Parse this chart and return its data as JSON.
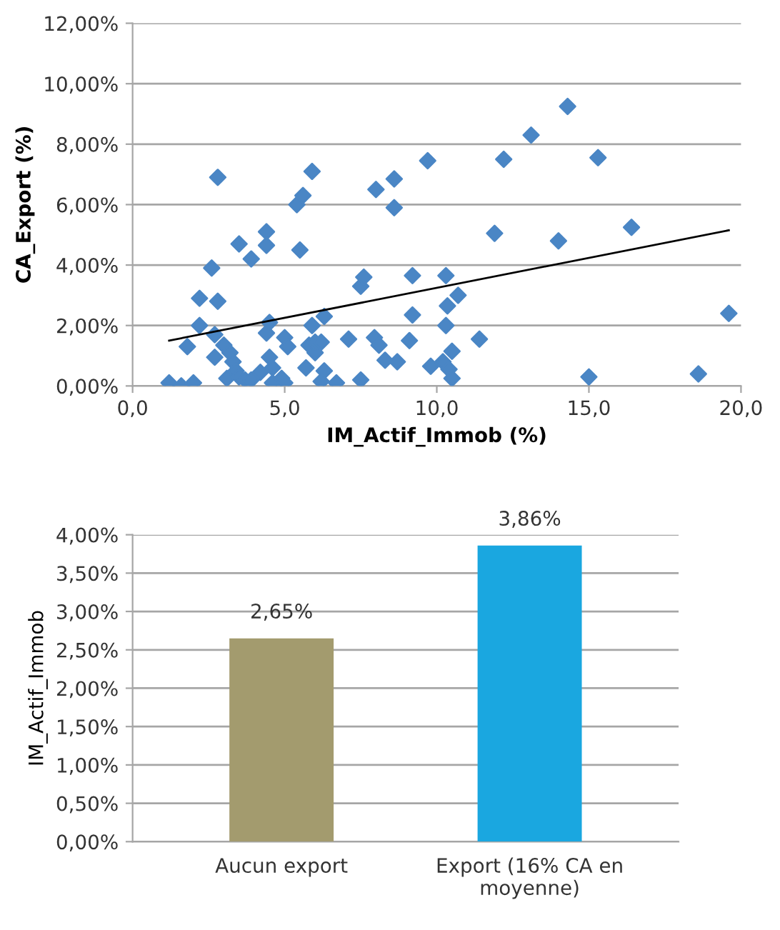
{
  "chart_data": [
    {
      "type": "scatter",
      "xlabel": "IM_Actif_Immob (%)",
      "ylabel": "CA_Export (%)",
      "xlim": [
        0,
        20
      ],
      "xticks": [
        {
          "value": 0,
          "label": "0,0"
        },
        {
          "value": 5,
          "label": "5,0"
        },
        {
          "value": 10,
          "label": "10,0"
        },
        {
          "value": 15,
          "label": "15,0"
        },
        {
          "value": 20,
          "label": "20,0"
        }
      ],
      "ylim": [
        0,
        12
      ],
      "yticks": [
        {
          "value": 0,
          "label": "0,00%"
        },
        {
          "value": 2,
          "label": "2,00%"
        },
        {
          "value": 4,
          "label": "4,00%"
        },
        {
          "value": 6,
          "label": "6,00%"
        },
        {
          "value": 8,
          "label": "8,00%"
        },
        {
          "value": 10,
          "label": "10,00%"
        },
        {
          "value": 12,
          "label": "12,00%"
        }
      ],
      "grid": "y",
      "series": [
        {
          "type": "scatter",
          "color": "#4a86c5",
          "marker": "diamond",
          "x": [
            1.2,
            1.6,
            2.0,
            1.8,
            2.2,
            2.2,
            2.6,
            2.8,
            2.8,
            2.7,
            2.7,
            3.0,
            3.1,
            3.2,
            3.3,
            3.4,
            3.5,
            3.5,
            3.7,
            3.9,
            3.9,
            4.2,
            4.4,
            4.4,
            4.5,
            4.4,
            4.5,
            4.6,
            4.6,
            4.9,
            5.0,
            5.1,
            5.0,
            5.4,
            5.6,
            5.5,
            5.7,
            5.8,
            5.9,
            5.9,
            6.0,
            6.0,
            6.2,
            6.3,
            6.3,
            6.2,
            6.7,
            7.1,
            7.5,
            7.5,
            7.6,
            8.0,
            7.95,
            8.1,
            8.3,
            8.6,
            8.6,
            8.7,
            9.1,
            9.2,
            9.2,
            9.7,
            9.8,
            10.2,
            10.3,
            10.35,
            10.3,
            10.4,
            10.5,
            10.5,
            10.7,
            11.4,
            11.9,
            12.2,
            13.1,
            14.0,
            14.3,
            15.0,
            15.3,
            16.4,
            18.6,
            19.6
          ],
          "values": [
            0.1,
            0.0,
            0.1,
            1.3,
            2.0,
            2.9,
            3.9,
            6.9,
            2.8,
            1.7,
            0.95,
            1.35,
            0.25,
            1.1,
            0.8,
            0.5,
            4.7,
            0.3,
            0.2,
            4.2,
            0.2,
            0.45,
            5.1,
            4.65,
            2.1,
            1.75,
            0.95,
            0.6,
            0.1,
            0.25,
            1.6,
            1.3,
            0.1,
            6.0,
            6.3,
            4.5,
            0.6,
            1.35,
            7.1,
            2.0,
            1.1,
            1.45,
            1.45,
            2.3,
            0.5,
            0.15,
            0.1,
            1.55,
            0.2,
            3.3,
            3.6,
            6.5,
            1.6,
            1.35,
            0.85,
            6.85,
            5.9,
            0.8,
            1.5,
            3.65,
            2.35,
            7.45,
            0.65,
            0.8,
            3.65,
            2.65,
            2.0,
            0.55,
            0.25,
            1.15,
            3.0,
            1.55,
            5.05,
            7.5,
            8.3,
            4.8,
            9.25,
            0.3,
            7.55,
            5.25,
            0.4,
            2.4
          ]
        },
        {
          "type": "line",
          "color": "#000000",
          "line_style": "solid",
          "x": [
            1.2,
            19.6
          ],
          "values": [
            1.5,
            5.15
          ]
        }
      ]
    },
    {
      "type": "bar",
      "ylabel": "IM_Actif_Immob",
      "categories": [
        "Aucun export",
        "Export (16% CA en\nmoyenne)"
      ],
      "values": [
        2.65,
        3.86
      ],
      "colors": [
        "#a39b6e",
        "#1aa7e0"
      ],
      "value_labels": [
        "2,65%",
        "3,86%"
      ],
      "ylim": [
        0,
        4
      ],
      "yticks": [
        {
          "value": 0,
          "label": "0,00%"
        },
        {
          "value": 0.5,
          "label": "0,50%"
        },
        {
          "value": 1,
          "label": "1,00%"
        },
        {
          "value": 1.5,
          "label": "1,50%"
        },
        {
          "value": 2,
          "label": "2,00%"
        },
        {
          "value": 2.5,
          "label": "2,50%"
        },
        {
          "value": 3,
          "label": "3,00%"
        },
        {
          "value": 3.5,
          "label": "3,50%"
        },
        {
          "value": 4,
          "label": "4,00%"
        }
      ],
      "grid": "y"
    }
  ]
}
